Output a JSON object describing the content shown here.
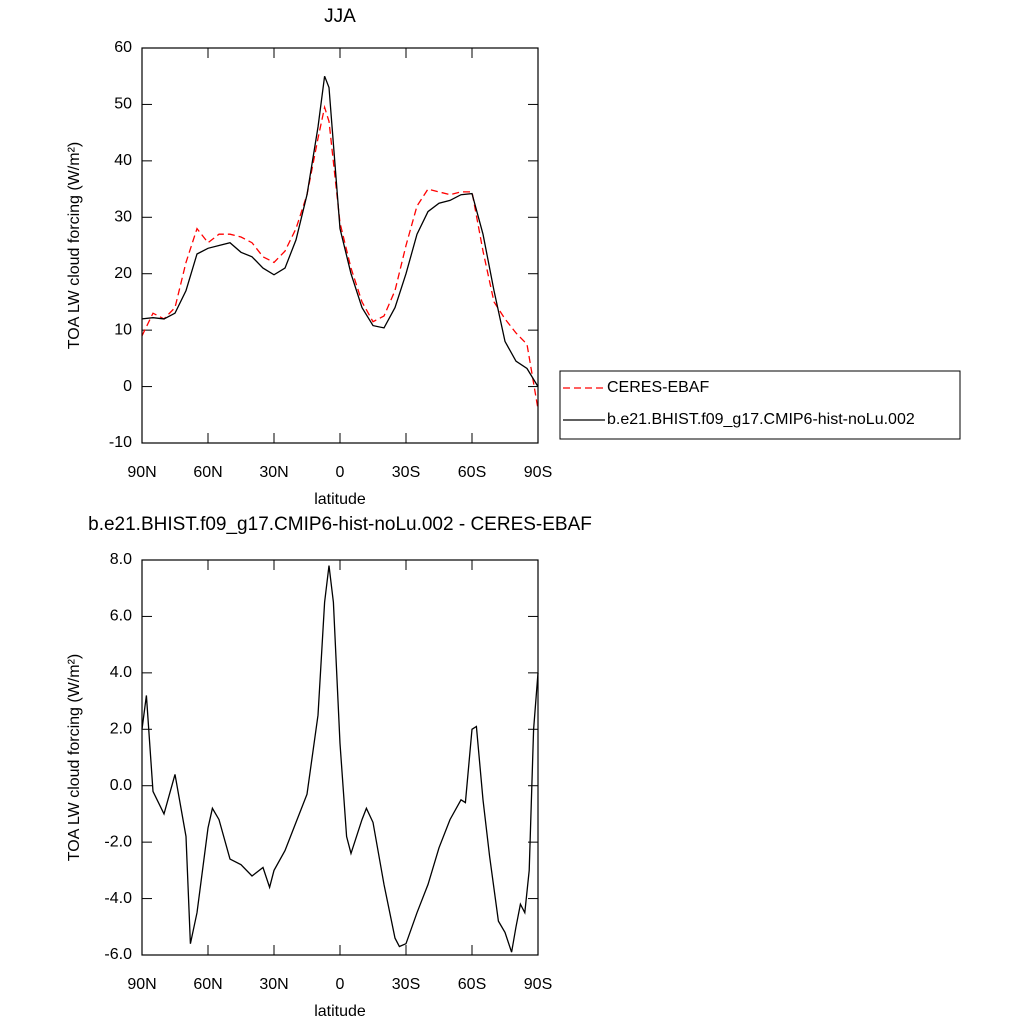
{
  "chart_data": [
    {
      "type": "line",
      "title": "JJA",
      "xlabel": "latitude",
      "ylabel": "TOA LW cloud forcing (W/m²)",
      "x": [
        90,
        85,
        80,
        75,
        70,
        65,
        60,
        55,
        50,
        45,
        40,
        35,
        30,
        25,
        20,
        15,
        10,
        7,
        5,
        0,
        -5,
        -10,
        -15,
        -20,
        -25,
        -30,
        -35,
        -40,
        -45,
        -50,
        -55,
        -60,
        -65,
        -70,
        -75,
        -80,
        -85,
        -90
      ],
      "series": [
        {
          "name": "CERES-EBAF",
          "color": "#ff0000",
          "dashed": true,
          "values": [
            9,
            13,
            12,
            14,
            22,
            28,
            25.5,
            27,
            27,
            26.5,
            25.5,
            23,
            22,
            24,
            28,
            34,
            44,
            49.5,
            47,
            29,
            21,
            15,
            11.5,
            12.5,
            17,
            25,
            32,
            35,
            34.5,
            34,
            34.5,
            34.5,
            24,
            15,
            12,
            9.5,
            7.5,
            -4
          ]
        },
        {
          "name": "b.e21.BHIST.f09_g17.CMIP6-hist-noLu.002",
          "color": "#000000",
          "dashed": false,
          "values": [
            12,
            12.2,
            12,
            13,
            17,
            23.5,
            24.5,
            25,
            25.5,
            23.8,
            23,
            21,
            19.8,
            21,
            26,
            34,
            46,
            55,
            53,
            28,
            20,
            14,
            10.8,
            10.4,
            14,
            20,
            27,
            31,
            32.5,
            33,
            34,
            34.2,
            27,
            17,
            8,
            4.5,
            3.2,
            0
          ]
        }
      ],
      "xlim": [
        90,
        -90
      ],
      "xticks": [
        {
          "value": 90,
          "label": "90N"
        },
        {
          "value": 60,
          "label": "60N"
        },
        {
          "value": 30,
          "label": "30N"
        },
        0,
        {
          "value": -30,
          "label": "30S"
        },
        {
          "value": -60,
          "label": "60S"
        },
        {
          "value": -90,
          "label": "90S"
        }
      ],
      "ylim": [
        -10,
        60
      ],
      "yticks": [
        60,
        50,
        40,
        30,
        20,
        10,
        0,
        -10
      ]
    },
    {
      "type": "line",
      "title": "b.e21.BHIST.f09_g17.CMIP6-hist-noLu.002 - CERES-EBAF",
      "xlabel": "latitude",
      "ylabel": "TOA LW cloud forcing (W/m²)",
      "x": [
        90,
        88,
        85,
        80,
        75,
        70,
        68,
        65,
        60,
        58,
        55,
        50,
        45,
        40,
        35,
        32,
        30,
        25,
        20,
        15,
        10,
        7,
        5,
        3,
        0,
        -3,
        -5,
        -10,
        -12,
        -15,
        -20,
        -25,
        -27,
        -30,
        -35,
        -40,
        -45,
        -50,
        -55,
        -57,
        -60,
        -62,
        -65,
        -68,
        -72,
        -75,
        -78,
        -80,
        -82,
        -84,
        -86,
        -88,
        -90
      ],
      "color": "#000000",
      "values": [
        2,
        3.2,
        -0.2,
        -1,
        0.4,
        -1.8,
        -5.6,
        -4.5,
        -1.5,
        -0.8,
        -1.2,
        -2.6,
        -2.8,
        -3.2,
        -2.9,
        -3.6,
        -3,
        -2.3,
        -1.3,
        -0.3,
        2.5,
        6.5,
        7.8,
        6.5,
        1.5,
        -1.8,
        -2.4,
        -1.2,
        -0.8,
        -1.3,
        -3.5,
        -5.4,
        -5.7,
        -5.6,
        -4.5,
        -3.5,
        -2.2,
        -1.2,
        -0.5,
        -0.6,
        2,
        2.1,
        -0.5,
        -2.5,
        -4.8,
        -5.2,
        -5.9,
        -5,
        -4.2,
        -4.5,
        -3,
        2,
        4
      ],
      "xlim": [
        90,
        -90
      ],
      "xticks": [
        {
          "value": 90,
          "label": "90N"
        },
        {
          "value": 60,
          "label": "60N"
        },
        {
          "value": 30,
          "label": "30N"
        },
        0,
        {
          "value": -30,
          "label": "30S"
        },
        {
          "value": -60,
          "label": "60S"
        },
        {
          "value": -90,
          "label": "90S"
        }
      ],
      "ylim": [
        -6,
        8
      ],
      "yticks": [
        {
          "value": 8,
          "label": "8.0"
        },
        {
          "value": 6,
          "label": "6.0"
        },
        {
          "value": 4,
          "label": "4.0"
        },
        {
          "value": 2,
          "label": "2.0"
        },
        {
          "value": 0,
          "label": "0.0"
        },
        {
          "value": -2,
          "label": "-2.0"
        },
        {
          "value": -4,
          "label": "-4.0"
        },
        {
          "value": -6,
          "label": "-6.0"
        }
      ]
    }
  ]
}
